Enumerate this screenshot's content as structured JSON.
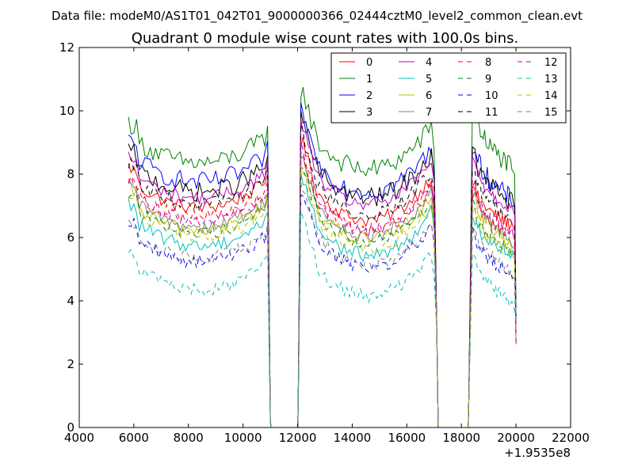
{
  "chart_data": {
    "type": "line",
    "suptitle": "Data file: modeM0/AS1T01_042T01_9000000366_02444cztM0_level2_common_clean.evt",
    "title": "Quadrant 0 module wise count rates with 100.0s bins.",
    "xlabel": "",
    "ylabel": "",
    "x_offset_label": "+1.9535e8",
    "xlim": [
      4000,
      22000
    ],
    "ylim": [
      0,
      12
    ],
    "xticks": [
      4000,
      6000,
      8000,
      10000,
      12000,
      14000,
      16000,
      18000,
      20000,
      22000
    ],
    "yticks": [
      0,
      2,
      4,
      6,
      8,
      10,
      12
    ],
    "legend_position": "top-right",
    "segments": [
      [
        5800,
        11000
      ],
      [
        12100,
        17100
      ],
      [
        18300,
        20000
      ]
    ],
    "gaps": [
      [
        11000,
        12100
      ],
      [
        17100,
        18300
      ]
    ],
    "series": [
      {
        "name": "0",
        "color": "#ff0000",
        "dashed": false,
        "levels": [
          7.2,
          6.9,
          6.8,
          7.6
        ]
      },
      {
        "name": "1",
        "color": "#008000",
        "dashed": false,
        "levels": [
          8.6,
          8.5,
          8.6,
          10.1
        ]
      },
      {
        "name": "2",
        "color": "#0000ff",
        "dashed": false,
        "levels": [
          8.0,
          7.8,
          7.6,
          8.9
        ]
      },
      {
        "name": "3",
        "color": "#000000",
        "dashed": false,
        "levels": [
          7.7,
          7.6,
          7.5,
          8.6
        ]
      },
      {
        "name": "4",
        "color": "#bf00bf",
        "dashed": false,
        "levels": [
          7.5,
          7.4,
          7.3,
          8.4
        ]
      },
      {
        "name": "5",
        "color": "#00bfbf",
        "dashed": false,
        "levels": [
          6.0,
          5.8,
          5.9,
          6.6
        ]
      },
      {
        "name": "6",
        "color": "#bfbf00",
        "dashed": false,
        "levels": [
          6.5,
          6.3,
          6.2,
          7.3
        ]
      },
      {
        "name": "7",
        "color": "#808080",
        "dashed": false,
        "levels": [
          6.6,
          6.4,
          6.3,
          7.5
        ]
      },
      {
        "name": "8",
        "color": "#ff0000",
        "dashed": true,
        "levels": [
          6.9,
          6.6,
          6.5,
          7.4
        ]
      },
      {
        "name": "9",
        "color": "#008000",
        "dashed": true,
        "levels": [
          6.4,
          6.2,
          6.0,
          7.0
        ]
      },
      {
        "name": "10",
        "color": "#0000ff",
        "dashed": true,
        "levels": [
          5.5,
          5.4,
          5.2,
          6.2
        ]
      },
      {
        "name": "11",
        "color": "#000000",
        "dashed": true,
        "levels": [
          7.3,
          7.1,
          7.0,
          8.0
        ]
      },
      {
        "name": "12",
        "color": "#bf00bf",
        "dashed": true,
        "levels": [
          6.8,
          6.6,
          6.5,
          7.6
        ]
      },
      {
        "name": "13",
        "color": "#00bfbf",
        "dashed": true,
        "levels": [
          4.6,
          4.5,
          4.3,
          5.6
        ]
      },
      {
        "name": "14",
        "color": "#bfbf00",
        "dashed": true,
        "levels": [
          6.3,
          6.0,
          5.9,
          6.9
        ]
      },
      {
        "name": "15",
        "color": "#808080",
        "dashed": true,
        "levels": [
          5.6,
          5.5,
          5.3,
          6.4
        ]
      }
    ]
  }
}
